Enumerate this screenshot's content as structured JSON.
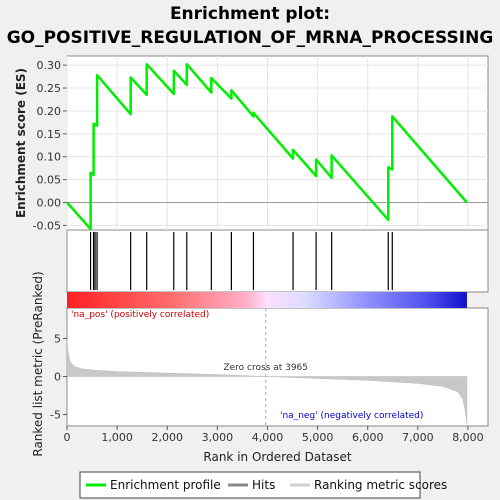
{
  "title_line1": "Enrichment plot:",
  "title_line2": "GO_POSITIVE_REGULATION_OF_MRNA_PROCESSING",
  "colors": {
    "enrichment_line": "#00ee00",
    "hits": "#000000",
    "ranking_fill": "#c8c8c8",
    "pos_label": "#cc0000",
    "neg_label": "#0000cc",
    "background": "#f0f0f0",
    "plot_bg": "#ffffff"
  },
  "chart_data": {
    "type": "line",
    "panels": {
      "enrichment": {
        "ylabel": "Enrichment score (ES)",
        "ylim": [
          -0.06,
          0.32
        ],
        "yticks": [
          "-0.05",
          "0.00",
          "0.05",
          "0.10",
          "0.15",
          "0.20",
          "0.25",
          "0.30"
        ],
        "ytick_values": [
          -0.05,
          0.0,
          0.05,
          0.1,
          0.15,
          0.2,
          0.25,
          0.3
        ],
        "series": [
          {
            "name": "Enrichment profile",
            "x": [
              0,
              470,
              470,
              530,
              530,
              560,
              560,
              600,
              600,
              1270,
              1270,
              1590,
              1590,
              2130,
              2130,
              2390,
              2390,
              2880,
              2880,
              3280,
              3280,
              3720,
              3720,
              4510,
              4510,
              4970,
              4970,
              5280,
              5280,
              6410,
              6410,
              6490,
              6490,
              7980
            ],
            "y": [
              0.0,
              -0.058,
              0.065,
              0.06,
              0.172,
              0.168,
              0.171,
              0.168,
              0.278,
              0.193,
              0.273,
              0.235,
              0.302,
              0.237,
              0.288,
              0.257,
              0.302,
              0.24,
              0.272,
              0.227,
              0.245,
              0.188,
              0.196,
              0.096,
              0.115,
              0.058,
              0.094,
              0.054,
              0.103,
              -0.038,
              0.077,
              0.072,
              0.188,
              0.0
            ]
          }
        ],
        "hits": [
          470,
          530,
          560,
          600,
          1270,
          1590,
          2130,
          2390,
          2880,
          3280,
          3720,
          4510,
          4970,
          5280,
          6410,
          6490
        ]
      },
      "ranking": {
        "xlabel": "Rank in Ordered Dataset",
        "ylabel": "Ranked list metric (PreRanked)",
        "xlim": [
          0,
          8400
        ],
        "ylim": [
          -6.5,
          9
        ],
        "xticks": [
          "0",
          "1,000",
          "2,000",
          "3,000",
          "4,000",
          "5,000",
          "6,000",
          "7,000",
          "8,000"
        ],
        "xtick_values": [
          0,
          1000,
          2000,
          3000,
          4000,
          5000,
          6000,
          7000,
          8000
        ],
        "yticks": [
          "5",
          "0",
          "-5"
        ],
        "ytick_values": [
          5,
          0,
          -5
        ],
        "metric_curve": {
          "x": [
            0,
            20,
            60,
            150,
            300,
            600,
            1000,
            2000,
            3000,
            3965,
            5000,
            6000,
            7000,
            7500,
            7800,
            7900,
            7960,
            7980
          ],
          "y": [
            5.0,
            3.2,
            2.0,
            1.3,
            1.0,
            0.8,
            0.65,
            0.45,
            0.25,
            0.0,
            -0.25,
            -0.5,
            -0.9,
            -1.3,
            -2.0,
            -3.0,
            -5.0,
            -6.3
          ]
        },
        "zero_cross_label": "Zero cross at 3965",
        "zero_cross": 3965,
        "pos_label": "'na_pos' (positively correlated)",
        "neg_label": "'na_neg' (negatively correlated)"
      }
    },
    "legend": {
      "placement": "bottom",
      "entries": [
        "Enrichment profile",
        "Hits",
        "Ranking metric scores"
      ]
    },
    "n_genes": 7980
  }
}
